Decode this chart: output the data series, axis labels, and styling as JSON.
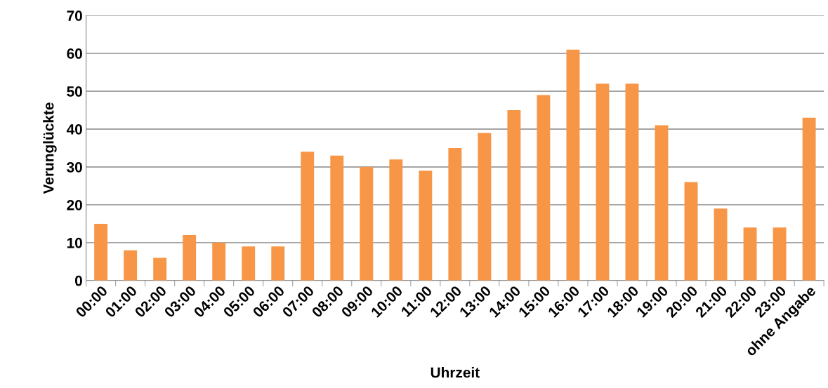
{
  "chart_data": {
    "type": "bar",
    "xlabel": "Uhrzeit",
    "ylabel": "Verunglückte",
    "categories": [
      "00:00",
      "01:00",
      "02:00",
      "03:00",
      "04:00",
      "05:00",
      "06:00",
      "07:00",
      "08:00",
      "09:00",
      "10:00",
      "11:00",
      "12:00",
      "13:00",
      "14:00",
      "15:00",
      "16:00",
      "17:00",
      "18:00",
      "19:00",
      "20:00",
      "21:00",
      "22:00",
      "23:00",
      "ohne Angabe"
    ],
    "values": [
      15,
      8,
      6,
      12,
      10,
      9,
      9,
      34,
      33,
      30,
      32,
      29,
      35,
      39,
      45,
      49,
      61,
      52,
      52,
      41,
      26,
      19,
      14,
      14,
      43
    ],
    "color": "#f79646",
    "ylim": [
      0,
      70
    ],
    "yticks": [
      0,
      10,
      20,
      30,
      40,
      50,
      60,
      70
    ],
    "grid": "y"
  }
}
